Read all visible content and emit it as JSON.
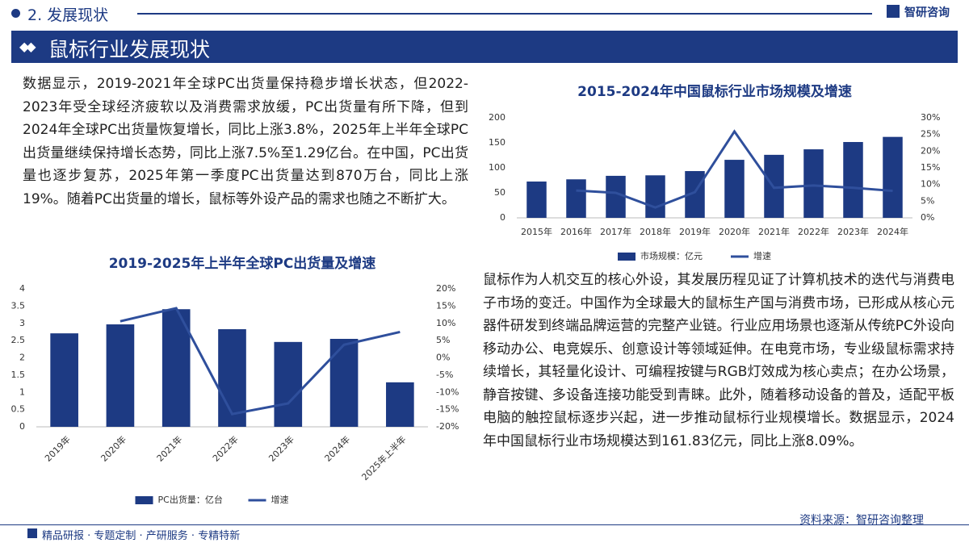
{
  "header": {
    "section": "2. 发展现状",
    "logo": "智研咨询",
    "title": "鼠标行业发展现状"
  },
  "paragraphs": [
    "数据显示，2019-2021年全球PC出货量保持稳步增长状态，但2022-2023年受全球经济疲软以及消费需求放缓，PC出货量有所下降，但到2024年全球PC出货量恢复增长，同比上涨3.8%，2025年上半年全球PC出货量继续保持增长态势，同比上涨7.5%至1.29亿台。在中国，PC出货量也逐步复苏，2025年第一季度PC出货量达到870万台，同比上涨19%。随着PC出货量的增长，鼠标等外设产品的需求也随之不断扩大。",
    "鼠标作为人机交互的核心外设，其发展历程见证了计算机技术的迭代与消费电子市场的变迁。中国作为全球最大的鼠标生产国与消费市场，已形成从核心元器件研发到终端品牌运营的完整产业链。行业应用场景也逐渐从传统PC外设向移动办公、电竞娱乐、创意设计等领域延伸。在电竞市场，专业级鼠标需求持续增长，其轻量化设计、可编程按键与RGB灯效成为核心卖点；在办公场景，静音按键、多设备连接功能受到青睐。此外，随着移动设备的普及，适配平板电脑的触控鼠标逐步兴起，进一步推动鼠标行业规模增长。数据显示，2024年中国鼠标行业市场规模达到161.83亿元，同比上涨8.09%。"
  ],
  "source": "资料来源：智研咨询整理",
  "footer": "精品研报 · 专题定制 · 产研服务 · 专精特新",
  "chart_data": [
    {
      "type": "combo",
      "title": "2015-2024年中国鼠标行业市场规模及增速",
      "categories": [
        "2015年",
        "2016年",
        "2017年",
        "2018年",
        "2019年",
        "2020年",
        "2021年",
        "2022年",
        "2023年",
        "2024年"
      ],
      "series": [
        {
          "name": "市场规模：亿元",
          "color": "#1d3a83",
          "values": [
            72.6,
            77,
            84,
            85,
            93.5,
            116,
            126,
            137,
            151.6,
            161.83
          ]
        },
        {
          "name": "增速",
          "color": "#2f4f9c",
          "axis": "y2",
          "values": [
            null,
            8.2,
            7.5,
            3.1,
            7.7,
            25.9,
            9.0,
            9.7,
            9.0,
            8.09
          ]
        }
      ],
      "ylim": [
        0,
        200
      ],
      "yticks": [
        0,
        50,
        100,
        150,
        200
      ],
      "y2lim": [
        0,
        30
      ],
      "y2ticks": [
        {
          "value": 0,
          "label": "0%"
        },
        {
          "value": 5,
          "label": "5%"
        },
        {
          "value": 10,
          "label": "10%"
        },
        {
          "value": 15,
          "label": "15%"
        },
        {
          "value": 20,
          "label": "20%"
        },
        {
          "value": 25,
          "label": "25%"
        },
        {
          "value": 30,
          "label": "30%"
        }
      ],
      "legend": "bottom"
    },
    {
      "type": "combo",
      "title": "2019-2025年上半年全球PC出货量及增速",
      "categories": [
        "2019年",
        "2020年",
        "2021年",
        "2022年",
        "2023年",
        "2024年",
        "2025年上半年"
      ],
      "series": [
        {
          "name": "PC出货量：亿台",
          "color": "#1d3a83",
          "values": [
            2.71,
            2.97,
            3.41,
            2.83,
            2.46,
            2.55,
            1.29
          ]
        },
        {
          "name": "增速",
          "color": "#2f4f9c",
          "axis": "y2",
          "values": [
            null,
            10.6,
            14.4,
            -16.3,
            -13.2,
            3.8,
            7.5
          ]
        }
      ],
      "ylim": [
        0,
        4
      ],
      "yticks": [
        0,
        0.5,
        1,
        1.5,
        2,
        2.5,
        3,
        3.5,
        4
      ],
      "y2lim": [
        -20,
        20
      ],
      "y2ticks": [
        {
          "value": -20,
          "label": "-20%"
        },
        {
          "value": -15,
          "label": "-15%"
        },
        {
          "value": -10,
          "label": "-10%"
        },
        {
          "value": -5,
          "label": "-5%"
        },
        {
          "value": 0,
          "label": "0%"
        },
        {
          "value": 5,
          "label": "5%"
        },
        {
          "value": 10,
          "label": "10%"
        },
        {
          "value": 15,
          "label": "15%"
        },
        {
          "value": 20,
          "label": "20%"
        }
      ],
      "legend": "bottom"
    }
  ]
}
